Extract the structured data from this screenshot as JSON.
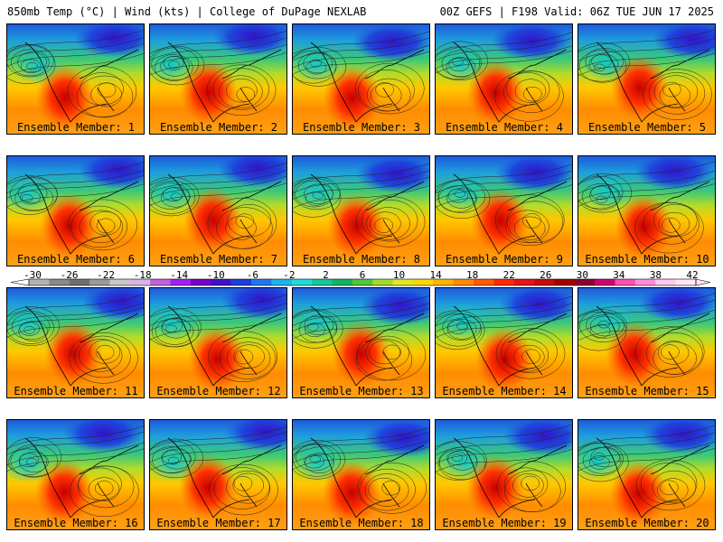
{
  "header": {
    "left": "850mb Temp (°C) | Wind (kts) | College of DuPage NEXLAB",
    "right": "00Z GEFS | F198 Valid: 06Z TUE JUN 17 2025"
  },
  "colorbar": {
    "ticks": [
      "-30",
      "-26",
      "-22",
      "-18",
      "-14",
      "-10",
      "-6",
      "-2",
      "2",
      "6",
      "10",
      "14",
      "18",
      "22",
      "26",
      "30",
      "34",
      "38",
      "42"
    ],
    "colors": [
      "#b3b3b3",
      "#8a8a8a",
      "#6f6f6f",
      "#9a9a9a",
      "#c8c8c8",
      "#d8b4e8",
      "#c060e0",
      "#a020f0",
      "#7a00c8",
      "#3c14c8",
      "#1e3cdc",
      "#1e78f0",
      "#1eb4f0",
      "#1edcdc",
      "#14c8a0",
      "#14b464",
      "#50c83c",
      "#a0dc28",
      "#e6e628",
      "#ffd700",
      "#ffb400",
      "#ff8c00",
      "#ff5a00",
      "#ff2800",
      "#e61414",
      "#c80a0a",
      "#a00000",
      "#8c0032",
      "#d20078",
      "#ff50b4",
      "#ff8cdc",
      "#ffc8f0",
      "#ffe6fa"
    ]
  },
  "members": [
    {
      "label": "Ensemble Member: 1"
    },
    {
      "label": "Ensemble Member: 2"
    },
    {
      "label": "Ensemble Member: 3"
    },
    {
      "label": "Ensemble Member: 4"
    },
    {
      "label": "Ensemble Member: 5"
    },
    {
      "label": "Ensemble Member: 6"
    },
    {
      "label": "Ensemble Member: 7"
    },
    {
      "label": "Ensemble Member: 8"
    },
    {
      "label": "Ensemble Member: 9"
    },
    {
      "label": "Ensemble Member: 10"
    },
    {
      "label": "Ensemble Member: 11"
    },
    {
      "label": "Ensemble Member: 12"
    },
    {
      "label": "Ensemble Member: 13"
    },
    {
      "label": "Ensemble Member: 14"
    },
    {
      "label": "Ensemble Member: 15"
    },
    {
      "label": "Ensemble Member: 16"
    },
    {
      "label": "Ensemble Member: 17"
    },
    {
      "label": "Ensemble Member: 18"
    },
    {
      "label": "Ensemble Member: 19"
    },
    {
      "label": "Ensemble Member: 20"
    }
  ]
}
